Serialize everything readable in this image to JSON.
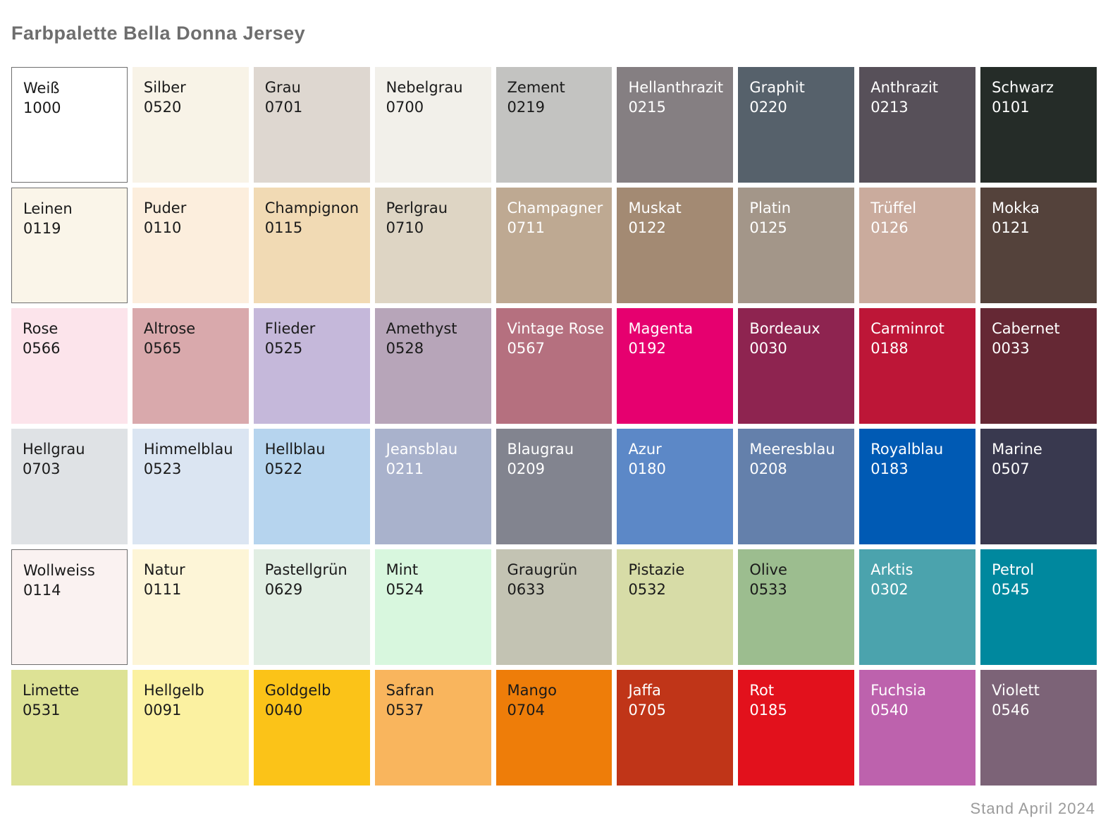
{
  "page": {
    "title": "Farbpalette Bella Donna Jersey",
    "footer": "Stand April 2024",
    "title_color": "#6e6e6e",
    "footer_color": "#9b9b9b",
    "background": "#ffffff"
  },
  "palette": {
    "columns": 9,
    "rows": 6,
    "swatches": [
      {
        "name": "Weiß",
        "code": "1000",
        "color": "#ffffff",
        "text": "dark",
        "border": true
      },
      {
        "name": "Silber",
        "code": "0520",
        "color": "#f8f3e7",
        "text": "dark",
        "border": false
      },
      {
        "name": "Grau",
        "code": "0701",
        "color": "#ded7d0",
        "text": "dark",
        "border": false
      },
      {
        "name": "Nebelgrau",
        "code": "0700",
        "color": "#f2f0ea",
        "text": "dark",
        "border": false
      },
      {
        "name": "Zement",
        "code": "0219",
        "color": "#c3c3c1",
        "text": "dark",
        "border": false
      },
      {
        "name": "Hellanthrazit",
        "code": "0215",
        "color": "#857f82",
        "text": "light",
        "border": false
      },
      {
        "name": "Graphit",
        "code": "0220",
        "color": "#56616b",
        "text": "light",
        "border": false
      },
      {
        "name": "Anthrazit",
        "code": "0213",
        "color": "#575059",
        "text": "light",
        "border": false
      },
      {
        "name": "Schwarz",
        "code": "0101",
        "color": "#252c28",
        "text": "light",
        "border": false
      },
      {
        "name": "Leinen",
        "code": "0119",
        "color": "#faf5e9",
        "text": "dark",
        "border": true
      },
      {
        "name": "Puder",
        "code": "0110",
        "color": "#fceedd",
        "text": "dark",
        "border": false
      },
      {
        "name": "Champignon",
        "code": "0115",
        "color": "#f1dab4",
        "text": "dark",
        "border": false
      },
      {
        "name": "Perlgrau",
        "code": "0710",
        "color": "#ded5c4",
        "text": "dark",
        "border": false
      },
      {
        "name": "Champagner",
        "code": "0711",
        "color": "#bea992",
        "text": "light",
        "border": false
      },
      {
        "name": "Muskat",
        "code": "0122",
        "color": "#a38a73",
        "text": "light",
        "border": false
      },
      {
        "name": "Platin",
        "code": "0125",
        "color": "#a39689",
        "text": "light",
        "border": false
      },
      {
        "name": "Trüffel",
        "code": "0126",
        "color": "#caab9d",
        "text": "light",
        "border": false
      },
      {
        "name": "Mokka",
        "code": "0121",
        "color": "#54423b",
        "text": "light",
        "border": false
      },
      {
        "name": "Rose",
        "code": "0566",
        "color": "#fce4eb",
        "text": "dark",
        "border": false
      },
      {
        "name": "Altrose",
        "code": "0565",
        "color": "#d9a9ac",
        "text": "dark",
        "border": false
      },
      {
        "name": "Flieder",
        "code": "0525",
        "color": "#c5b8da",
        "text": "dark",
        "border": false
      },
      {
        "name": "Amethyst",
        "code": "0528",
        "color": "#b7a5b9",
        "text": "dark",
        "border": false
      },
      {
        "name": "Vintage Rose",
        "code": "0567",
        "color": "#b5707f",
        "text": "light",
        "border": false
      },
      {
        "name": "Magenta",
        "code": "0192",
        "color": "#e6006f",
        "text": "light",
        "border": false
      },
      {
        "name": "Bordeaux",
        "code": "0030",
        "color": "#8e2450",
        "text": "light",
        "border": false
      },
      {
        "name": "Carminrot",
        "code": "0188",
        "color": "#bd1637",
        "text": "light",
        "border": false
      },
      {
        "name": "Cabernet",
        "code": "0033",
        "color": "#652834",
        "text": "light",
        "border": false
      },
      {
        "name": "Hellgrau",
        "code": "0703",
        "color": "#dfe2e5",
        "text": "dark",
        "border": false
      },
      {
        "name": "Himmelblau",
        "code": "0523",
        "color": "#dbe5f2",
        "text": "dark",
        "border": false
      },
      {
        "name": "Hellblau",
        "code": "0522",
        "color": "#b6d4ee",
        "text": "dark",
        "border": false
      },
      {
        "name": "Jeansblau",
        "code": "0211",
        "color": "#a9b2cc",
        "text": "light",
        "border": false
      },
      {
        "name": "Blaugrau",
        "code": "0209",
        "color": "#82848f",
        "text": "light",
        "border": false
      },
      {
        "name": "Azur",
        "code": "0180",
        "color": "#5c88c7",
        "text": "light",
        "border": false
      },
      {
        "name": "Meeresblau",
        "code": "0208",
        "color": "#6480ab",
        "text": "light",
        "border": false
      },
      {
        "name": "Royalblau",
        "code": "0183",
        "color": "#005ab4",
        "text": "light",
        "border": false
      },
      {
        "name": "Marine",
        "code": "0507",
        "color": "#39394f",
        "text": "light",
        "border": false
      },
      {
        "name": "Wollweiss",
        "code": "0114",
        "color": "#faf2f1",
        "text": "dark",
        "border": true
      },
      {
        "name": "Natur",
        "code": "0111",
        "color": "#fdf5d7",
        "text": "dark",
        "border": false
      },
      {
        "name": "Pastellgrün",
        "code": "0629",
        "color": "#e1eee3",
        "text": "dark",
        "border": false
      },
      {
        "name": "Mint",
        "code": "0524",
        "color": "#d8f7de",
        "text": "dark",
        "border": false
      },
      {
        "name": "Graugrün",
        "code": "0633",
        "color": "#c3c3b3",
        "text": "dark",
        "border": false
      },
      {
        "name": "Pistazie",
        "code": "0532",
        "color": "#d7dca7",
        "text": "dark",
        "border": false
      },
      {
        "name": "Olive",
        "code": "0533",
        "color": "#9cbd8f",
        "text": "dark",
        "border": false
      },
      {
        "name": "Arktis",
        "code": "0302",
        "color": "#4ba3ad",
        "text": "light",
        "border": false
      },
      {
        "name": "Petrol",
        "code": "0545",
        "color": "#00889e",
        "text": "light",
        "border": false
      },
      {
        "name": "Limette",
        "code": "0531",
        "color": "#dde295",
        "text": "dark",
        "border": false
      },
      {
        "name": "Hellgelb",
        "code": "0091",
        "color": "#fbf1a1",
        "text": "dark",
        "border": false
      },
      {
        "name": "Goldgelb",
        "code": "0040",
        "color": "#fbc318",
        "text": "dark",
        "border": false
      },
      {
        "name": "Safran",
        "code": "0537",
        "color": "#f9b55d",
        "text": "dark",
        "border": false
      },
      {
        "name": "Mango",
        "code": "0704",
        "color": "#ee7d09",
        "text": "dark",
        "border": false
      },
      {
        "name": "Jaffa",
        "code": "0705",
        "color": "#c03518",
        "text": "light",
        "border": false
      },
      {
        "name": "Rot",
        "code": "0185",
        "color": "#e2111c",
        "text": "light",
        "border": false
      },
      {
        "name": "Fuchsia",
        "code": "0540",
        "color": "#bd62ad",
        "text": "light",
        "border": false
      },
      {
        "name": "Violett",
        "code": "0546",
        "color": "#7c6377",
        "text": "light",
        "border": false
      }
    ]
  }
}
